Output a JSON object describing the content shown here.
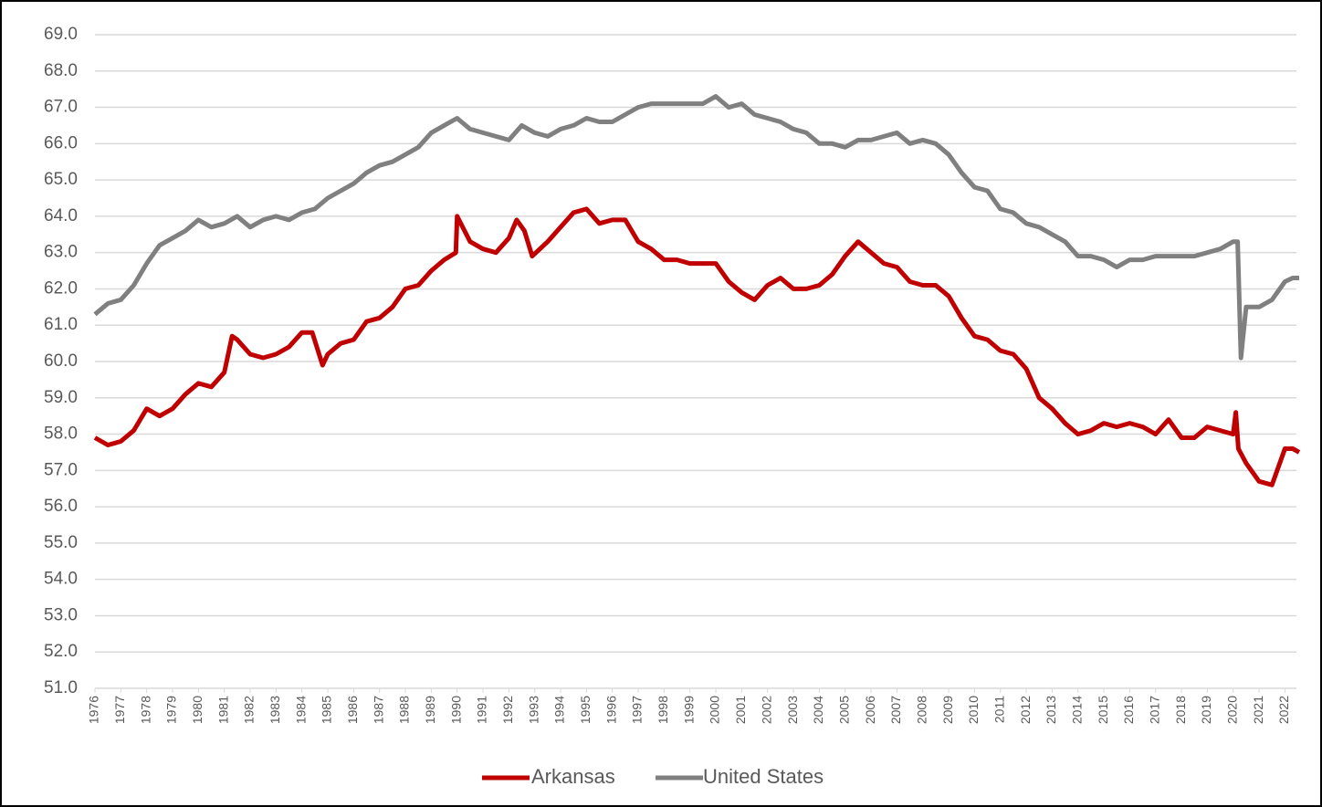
{
  "chart_data": {
    "type": "line",
    "xlim": [
      1976,
      2022.55
    ],
    "xticks": [
      1976,
      1977,
      1978,
      1979,
      1980,
      1981,
      1982,
      1983,
      1984,
      1985,
      1986,
      1987,
      1988,
      1989,
      1990,
      1991,
      1992,
      1993,
      1994,
      1995,
      1996,
      1997,
      1998,
      1999,
      2000,
      2001,
      2002,
      2003,
      2004,
      2005,
      2006,
      2007,
      2008,
      2009,
      2010,
      2011,
      2012,
      2013,
      2014,
      2015,
      2016,
      2017,
      2018,
      2019,
      2020,
      2021,
      2022
    ],
    "ylim": [
      51,
      69
    ],
    "yticks": [
      {
        "value": 51,
        "label": "51.0"
      },
      {
        "value": 52,
        "label": "52.0"
      },
      {
        "value": 53,
        "label": "53.0"
      },
      {
        "value": 54,
        "label": "54.0"
      },
      {
        "value": 55,
        "label": "55.0"
      },
      {
        "value": 56,
        "label": "56.0"
      },
      {
        "value": 57,
        "label": "57.0"
      },
      {
        "value": 58,
        "label": "58.0"
      },
      {
        "value": 59,
        "label": "59.0"
      },
      {
        "value": 60,
        "label": "60.0"
      },
      {
        "value": 61,
        "label": "61.0"
      },
      {
        "value": 62,
        "label": "62.0"
      },
      {
        "value": 63,
        "label": "63.0"
      },
      {
        "value": 64,
        "label": "64.0"
      },
      {
        "value": 65,
        "label": "65.0"
      },
      {
        "value": 66,
        "label": "66.0"
      },
      {
        "value": 67,
        "label": "67.0"
      },
      {
        "value": 68,
        "label": "68.0"
      },
      {
        "value": 69,
        "label": "69.0"
      }
    ],
    "grid": true,
    "legend": "bottom",
    "series": [
      {
        "name": "Arkansas",
        "color": "#c00000",
        "x": [
          1976.0,
          1976.5,
          1977.0,
          1977.5,
          1978.0,
          1978.5,
          1979.0,
          1979.5,
          1980.0,
          1980.5,
          1981.0,
          1981.3,
          1981.5,
          1982.0,
          1982.5,
          1983.0,
          1983.5,
          1984.0,
          1984.4,
          1984.8,
          1985.0,
          1985.5,
          1986.0,
          1986.5,
          1987.0,
          1987.5,
          1988.0,
          1988.5,
          1989.0,
          1989.5,
          1989.95,
          1990.0,
          1990.5,
          1991.0,
          1991.5,
          1992.0,
          1992.3,
          1992.6,
          1992.9,
          1993.5,
          1994.0,
          1994.5,
          1995.0,
          1995.5,
          1996.0,
          1996.5,
          1997.0,
          1997.5,
          1998.0,
          1998.5,
          1999.0,
          1999.5,
          2000.0,
          2000.5,
          2001.0,
          2001.5,
          2002.0,
          2002.5,
          2003.0,
          2003.5,
          2004.0,
          2004.5,
          2005.0,
          2005.5,
          2006.0,
          2006.5,
          2007.0,
          2007.5,
          2008.0,
          2008.5,
          2009.0,
          2009.5,
          2010.0,
          2010.5,
          2011.0,
          2011.5,
          2012.0,
          2012.5,
          2013.0,
          2013.5,
          2014.0,
          2014.5,
          2015.0,
          2015.5,
          2016.0,
          2016.5,
          2017.0,
          2017.5,
          2018.0,
          2018.5,
          2019.0,
          2019.5,
          2020.0,
          2020.1,
          2020.2,
          2020.5,
          2021.0,
          2021.5,
          2022.0,
          2022.3,
          2022.55
        ],
        "values": [
          57.9,
          57.7,
          57.8,
          58.1,
          58.7,
          58.5,
          58.7,
          59.1,
          59.4,
          59.3,
          59.7,
          60.7,
          60.6,
          60.2,
          60.1,
          60.2,
          60.4,
          60.8,
          60.8,
          59.9,
          60.2,
          60.5,
          60.6,
          61.1,
          61.2,
          61.5,
          62.0,
          62.1,
          62.5,
          62.8,
          63.0,
          64.0,
          63.3,
          63.1,
          63.0,
          63.4,
          63.9,
          63.6,
          62.9,
          63.3,
          63.7,
          64.1,
          64.2,
          63.8,
          63.9,
          63.9,
          63.3,
          63.1,
          62.8,
          62.8,
          62.7,
          62.7,
          62.7,
          62.2,
          61.9,
          61.7,
          62.1,
          62.3,
          62.0,
          62.0,
          62.1,
          62.4,
          62.9,
          63.3,
          63.0,
          62.7,
          62.6,
          62.2,
          62.1,
          62.1,
          61.8,
          61.2,
          60.7,
          60.6,
          60.3,
          60.2,
          59.8,
          59.0,
          58.7,
          58.3,
          58.0,
          58.1,
          58.3,
          58.2,
          58.3,
          58.2,
          58.0,
          58.4,
          57.9,
          57.9,
          58.2,
          58.1,
          58.0,
          58.6,
          57.6,
          57.2,
          56.7,
          56.6,
          57.6,
          57.6,
          57.5
        ]
      },
      {
        "name": "United States",
        "color": "#808080",
        "x": [
          1976.0,
          1976.5,
          1977.0,
          1977.5,
          1978.0,
          1978.5,
          1979.0,
          1979.5,
          1980.0,
          1980.5,
          1981.0,
          1981.5,
          1982.0,
          1982.5,
          1983.0,
          1983.5,
          1984.0,
          1984.5,
          1985.0,
          1985.5,
          1986.0,
          1986.5,
          1987.0,
          1987.5,
          1988.0,
          1988.5,
          1989.0,
          1989.5,
          1990.0,
          1990.5,
          1991.0,
          1991.5,
          1992.0,
          1992.5,
          1993.0,
          1993.5,
          1994.0,
          1994.5,
          1995.0,
          1995.5,
          1996.0,
          1996.5,
          1997.0,
          1997.5,
          1998.0,
          1998.5,
          1999.0,
          1999.5,
          2000.0,
          2000.5,
          2001.0,
          2001.5,
          2002.0,
          2002.5,
          2003.0,
          2003.5,
          2004.0,
          2004.5,
          2005.0,
          2005.5,
          2006.0,
          2006.5,
          2007.0,
          2007.5,
          2008.0,
          2008.5,
          2009.0,
          2009.5,
          2010.0,
          2010.5,
          2011.0,
          2011.5,
          2012.0,
          2012.5,
          2013.0,
          2013.5,
          2014.0,
          2014.5,
          2015.0,
          2015.5,
          2016.0,
          2016.5,
          2017.0,
          2017.5,
          2018.0,
          2018.5,
          2019.0,
          2019.5,
          2020.0,
          2020.17,
          2020.3,
          2020.5,
          2021.0,
          2021.5,
          2022.0,
          2022.3,
          2022.55
        ],
        "values": [
          61.3,
          61.6,
          61.7,
          62.1,
          62.7,
          63.2,
          63.4,
          63.6,
          63.9,
          63.7,
          63.8,
          64.0,
          63.7,
          63.9,
          64.0,
          63.9,
          64.1,
          64.2,
          64.5,
          64.7,
          64.9,
          65.2,
          65.4,
          65.5,
          65.7,
          65.9,
          66.3,
          66.5,
          66.7,
          66.4,
          66.3,
          66.2,
          66.1,
          66.5,
          66.3,
          66.2,
          66.4,
          66.5,
          66.7,
          66.6,
          66.6,
          66.8,
          67.0,
          67.1,
          67.1,
          67.1,
          67.1,
          67.1,
          67.3,
          67.0,
          67.1,
          66.8,
          66.7,
          66.6,
          66.4,
          66.3,
          66.0,
          66.0,
          65.9,
          66.1,
          66.1,
          66.2,
          66.3,
          66.0,
          66.1,
          66.0,
          65.7,
          65.2,
          64.8,
          64.7,
          64.2,
          64.1,
          63.8,
          63.7,
          63.5,
          63.3,
          62.9,
          62.9,
          62.8,
          62.6,
          62.8,
          62.8,
          62.9,
          62.9,
          62.9,
          62.9,
          63.0,
          63.1,
          63.3,
          63.3,
          60.1,
          61.5,
          61.5,
          61.7,
          62.2,
          62.3,
          62.3
        ]
      }
    ]
  }
}
